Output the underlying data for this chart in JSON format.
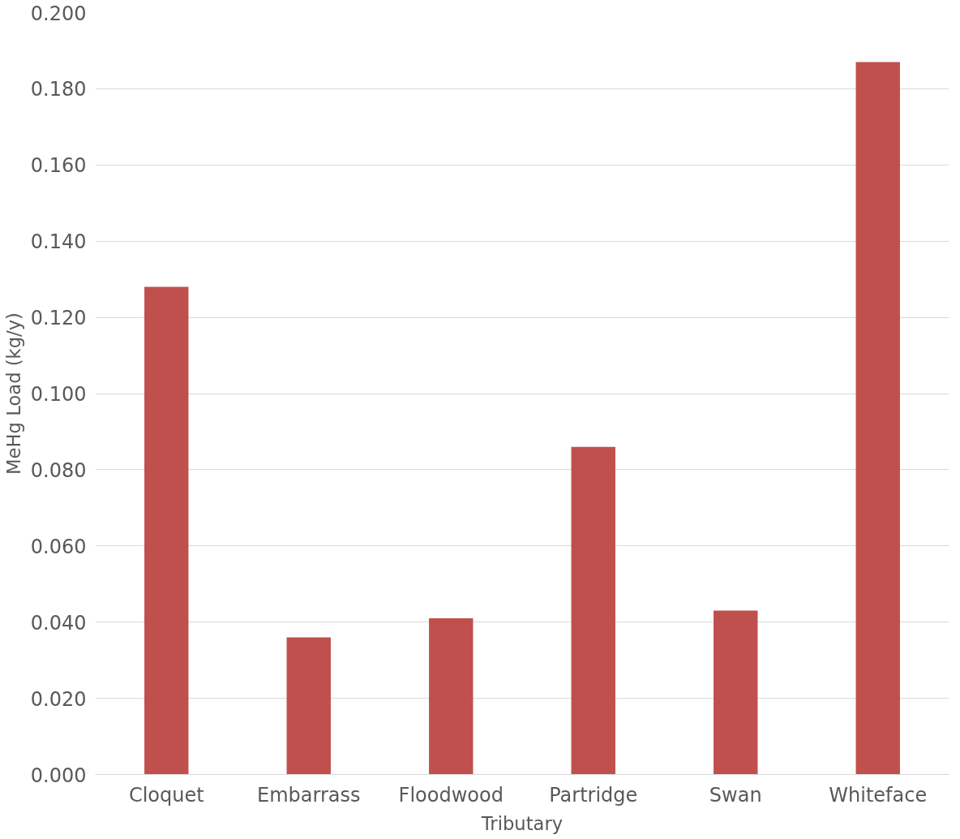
{
  "chart_data": {
    "type": "bar",
    "xlabel": "Tributary",
    "ylabel": "MeHg Load (kg/y)",
    "categories": [
      "Cloquet",
      "Embarrass",
      "Floodwood",
      "Partridge",
      "Swan",
      "Whiteface"
    ],
    "values": [
      0.128,
      0.036,
      0.041,
      0.086,
      0.043,
      0.187
    ],
    "color": "#c0504d",
    "ylim": [
      0,
      0.2
    ],
    "yticks": [
      {
        "value": 0,
        "label": "0.000"
      },
      {
        "value": 0.02,
        "label": "0.020"
      },
      {
        "value": 0.04,
        "label": "0.040"
      },
      {
        "value": 0.06,
        "label": "0.060"
      },
      {
        "value": 0.08,
        "label": "0.080"
      },
      {
        "value": 0.1,
        "label": "0.100"
      },
      {
        "value": 0.12,
        "label": "0.120"
      },
      {
        "value": 0.14,
        "label": "0.140"
      },
      {
        "value": 0.16,
        "label": "0.160"
      },
      {
        "value": 0.18,
        "label": "0.180"
      },
      {
        "value": 0.2,
        "label": "0.200"
      }
    ],
    "grid": "y"
  }
}
